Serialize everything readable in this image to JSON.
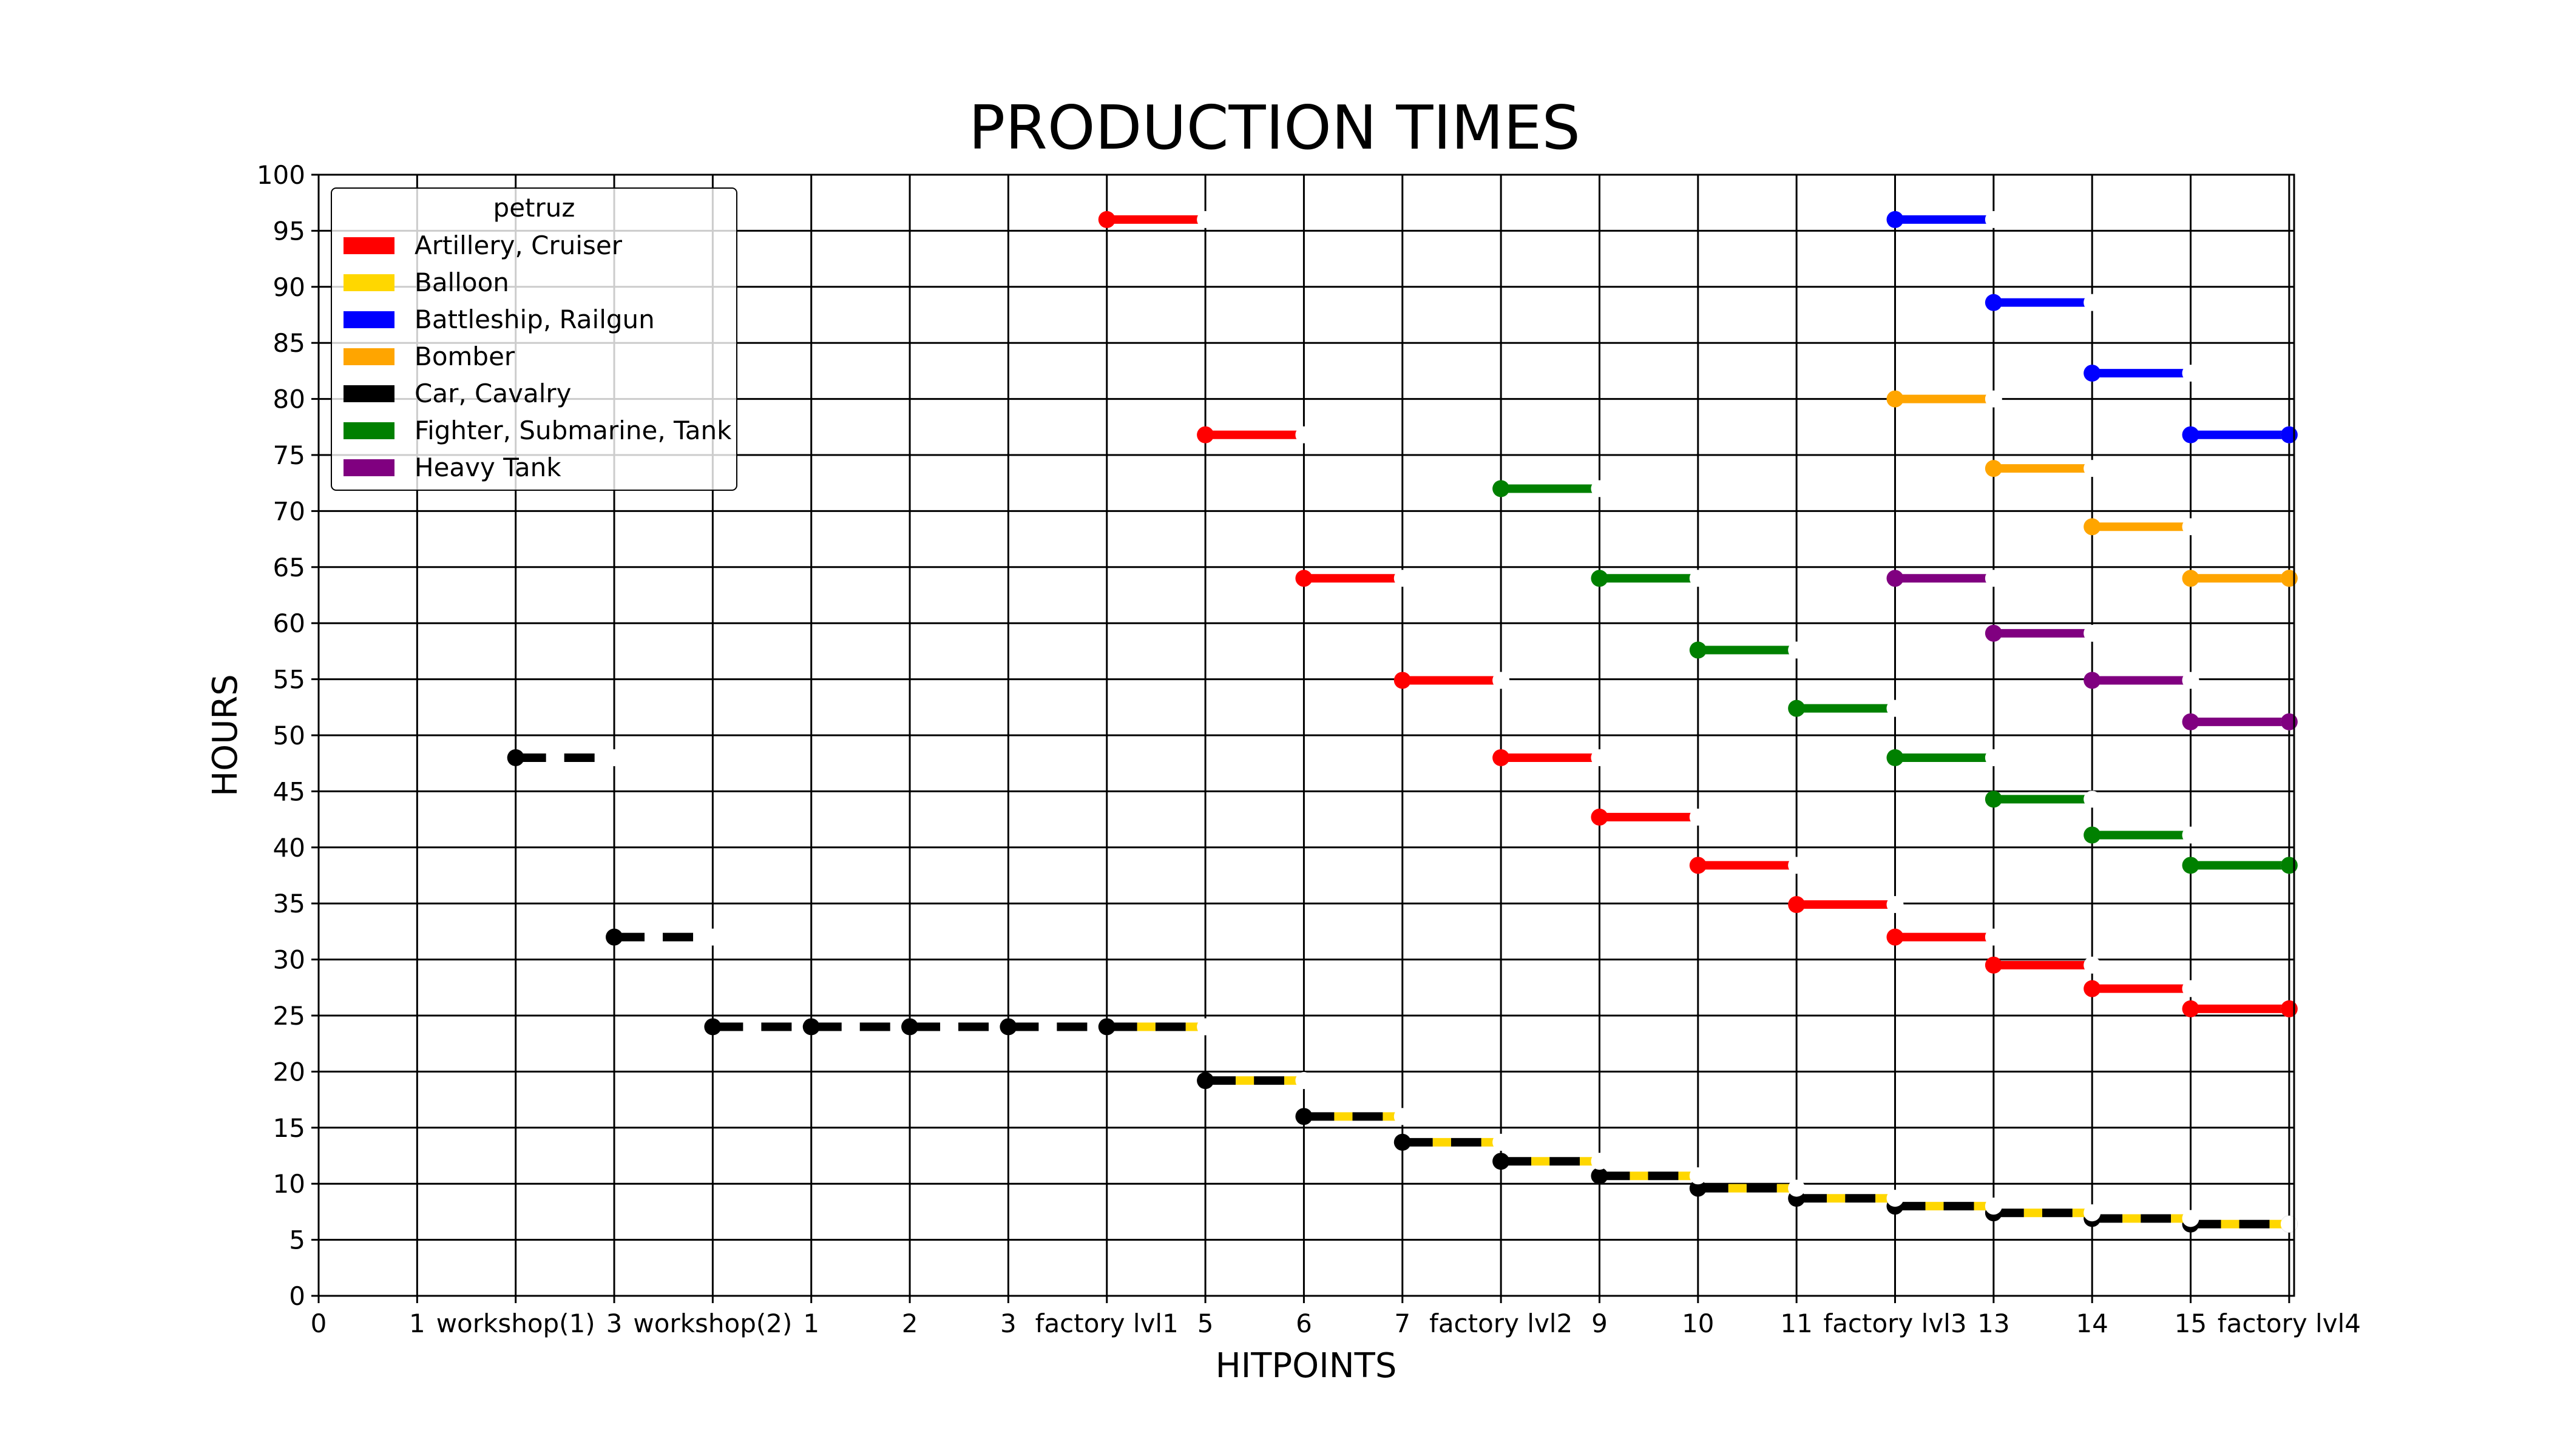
{
  "chart_data": {
    "type": "line",
    "title": "PRODUCTION TIMES",
    "xlabel": "HITPOINTS",
    "ylabel": "HOURS",
    "ylim": [
      0,
      100
    ],
    "xlim": [
      0,
      20
    ],
    "y_ticks": [
      0,
      5,
      10,
      15,
      20,
      25,
      30,
      35,
      40,
      45,
      50,
      55,
      60,
      65,
      70,
      75,
      80,
      85,
      90,
      95,
      100
    ],
    "x_tick_labels": [
      "0",
      "1",
      "workshop(1)",
      "3",
      "workshop(2)",
      "1",
      "2",
      "3",
      "factory lvl1",
      "5",
      "6",
      "7",
      "factory lvl2",
      "9",
      "10",
      "11",
      "factory lvl3",
      "13",
      "14",
      "15",
      "factory lvl4"
    ],
    "grid": true,
    "legend": {
      "title": "petruz",
      "placement": "top-left"
    },
    "series": [
      {
        "name": "Artillery, Cruiser",
        "color": "#ff0000",
        "style": "solid",
        "x": [
          8,
          9,
          10,
          11,
          12,
          13,
          14,
          15,
          16,
          17,
          18,
          19,
          20
        ],
        "y": [
          96,
          76.8,
          64,
          54.9,
          48,
          42.7,
          38.4,
          34.9,
          32,
          29.5,
          27.4,
          25.6,
          25.6
        ]
      },
      {
        "name": "Balloon",
        "color": "#ffd700",
        "style": "dashed-over",
        "x": [
          8,
          9,
          10,
          11,
          12,
          13,
          14,
          15,
          16,
          17,
          18,
          19,
          20
        ],
        "y": [
          24,
          19.2,
          16,
          13.7,
          12,
          10.7,
          9.6,
          8.7,
          8,
          7.4,
          6.9,
          6.4,
          6.4
        ]
      },
      {
        "name": "Battleship, Railgun",
        "color": "#0000ff",
        "style": "solid",
        "x": [
          16,
          17,
          18,
          19,
          20
        ],
        "y": [
          96,
          88.6,
          82.3,
          76.8,
          76.8
        ]
      },
      {
        "name": "Bomber",
        "color": "#ffa500",
        "style": "solid",
        "x": [
          16,
          17,
          18,
          19,
          20
        ],
        "y": [
          80,
          73.8,
          68.6,
          64,
          64
        ]
      },
      {
        "name": "Car, Cavalry",
        "color": "#000000",
        "style": "dashed",
        "x": [
          2,
          3,
          4,
          5,
          6,
          7,
          8,
          9,
          10,
          11,
          12,
          13,
          14,
          15,
          16,
          17,
          18,
          19,
          20
        ],
        "y": [
          48,
          32,
          24,
          24,
          24,
          24,
          24,
          19.2,
          16,
          13.7,
          12,
          10.7,
          9.6,
          8.7,
          8,
          7.4,
          6.9,
          6.4,
          6.4
        ]
      },
      {
        "name": "Fighter, Submarine, Tank",
        "color": "#008000",
        "style": "solid",
        "x": [
          12,
          13,
          14,
          15,
          16,
          17,
          18,
          19,
          20
        ],
        "y": [
          72,
          64,
          57.6,
          52.4,
          48,
          44.3,
          41.1,
          38.4,
          38.4
        ]
      },
      {
        "name": "Heavy Tank",
        "color": "#800080",
        "style": "solid",
        "x": [
          16,
          17,
          18,
          19,
          20
        ],
        "y": [
          64,
          59.1,
          54.9,
          51.2,
          51.2
        ]
      }
    ]
  }
}
